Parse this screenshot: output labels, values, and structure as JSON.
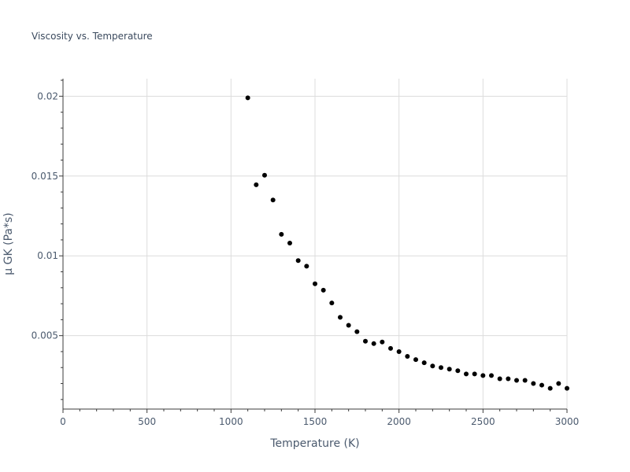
{
  "chart_data": {
    "type": "scatter",
    "title": "Viscosity vs. Temperature",
    "xlabel": "Temperature (K)",
    "ylabel": "μ GK (Pa*s)",
    "xlim": [
      0,
      3000
    ],
    "ylim": [
      0.0004,
      0.0211
    ],
    "x_ticks": [
      0,
      500,
      1000,
      1500,
      2000,
      2500,
      3000
    ],
    "x_tick_labels": [
      "0",
      "500",
      "1000",
      "1500",
      "2000",
      "2500",
      "3000"
    ],
    "y_ticks": [
      0.005,
      0.01,
      0.015,
      0.02
    ],
    "y_tick_labels": [
      "0.005",
      "0.01",
      "0.015",
      "0.02"
    ],
    "grid": true,
    "marker_color": "#000000",
    "series": [
      {
        "x": [
          1100,
          1150,
          1200,
          1250,
          1300,
          1350,
          1400,
          1450,
          1500,
          1550,
          1600,
          1650,
          1700,
          1750,
          1800,
          1850,
          1900,
          1950,
          2000,
          2050,
          2100,
          2150,
          2200,
          2250,
          2300,
          2350,
          2400,
          2450,
          2500,
          2550,
          2600,
          2650,
          2700,
          2750,
          2800,
          2850,
          2900,
          2950,
          3000
        ],
        "y": [
          0.0199,
          0.01445,
          0.01505,
          0.0135,
          0.01135,
          0.0108,
          0.0097,
          0.00935,
          0.00825,
          0.00785,
          0.00705,
          0.00615,
          0.00565,
          0.00525,
          0.00465,
          0.0045,
          0.0046,
          0.0042,
          0.004,
          0.0037,
          0.0035,
          0.0033,
          0.0031,
          0.003,
          0.0029,
          0.0028,
          0.0026,
          0.0026,
          0.0025,
          0.0025,
          0.0023,
          0.0023,
          0.0022,
          0.0022,
          0.002,
          0.0019,
          0.0017,
          0.002,
          0.0017
        ]
      }
    ]
  }
}
